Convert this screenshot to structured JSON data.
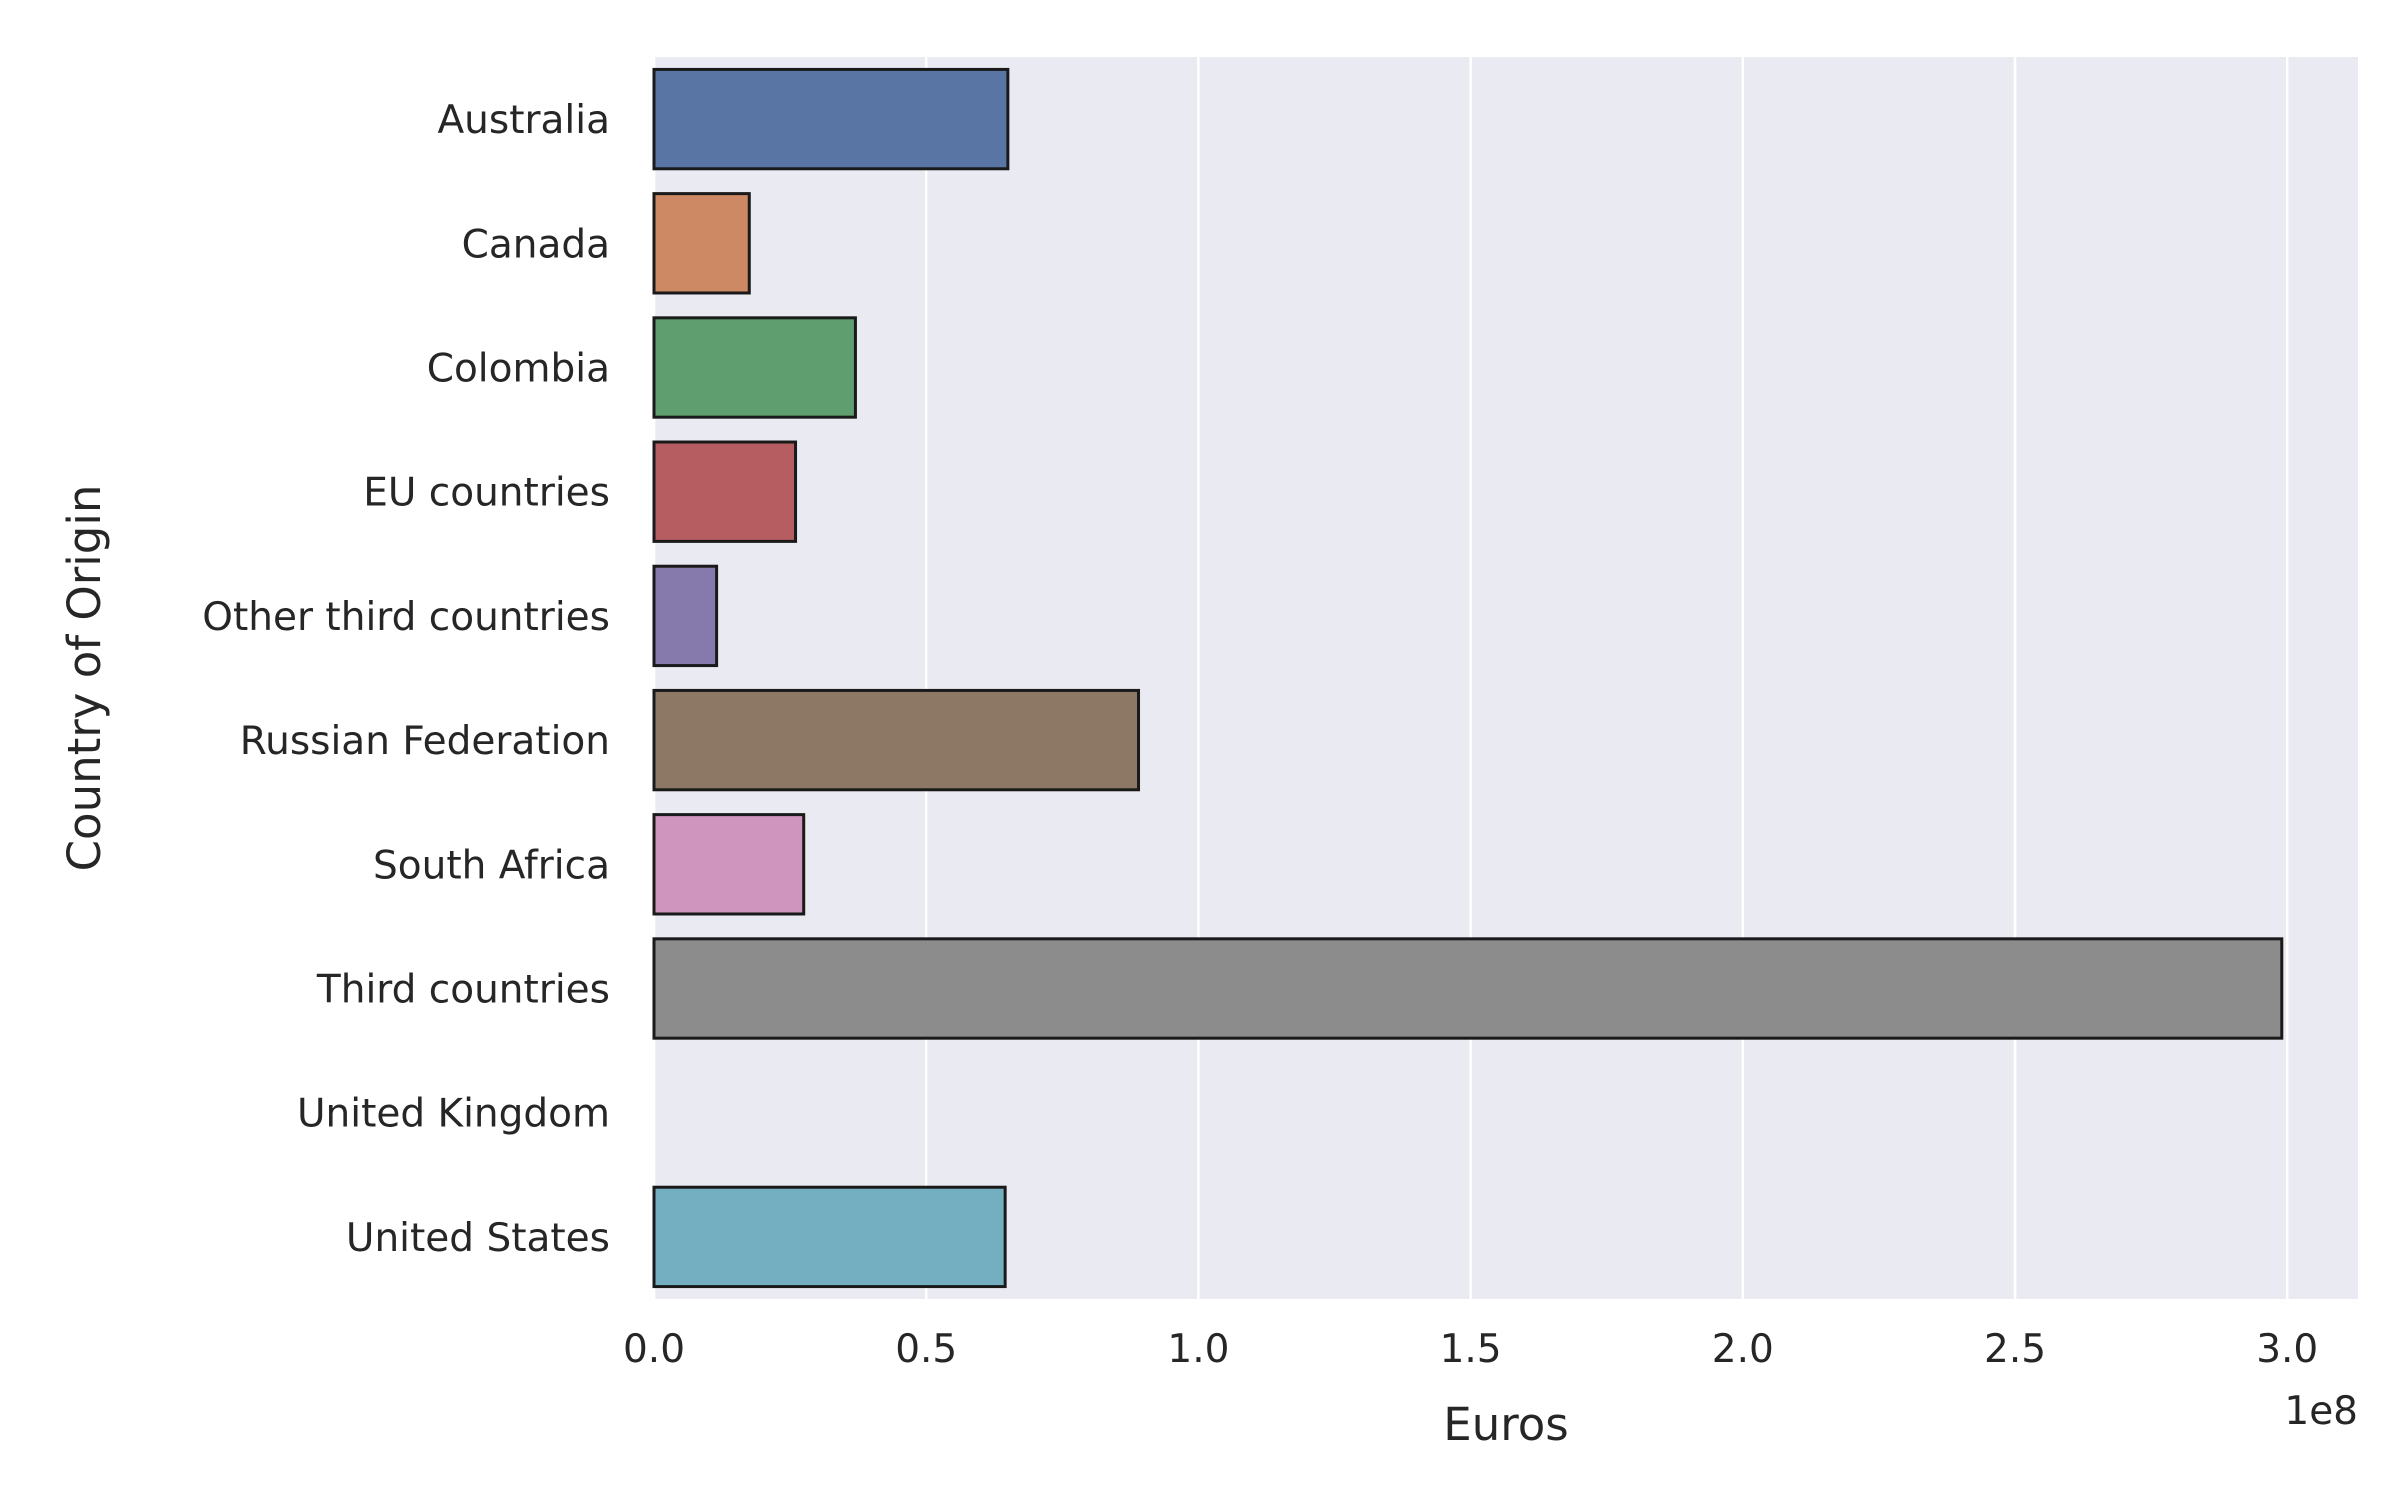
{
  "chart_data": {
    "type": "bar",
    "orientation": "horizontal",
    "categories": [
      "Australia",
      "Canada",
      "Colombia",
      "EU countries",
      "Other third countries",
      "Russian Federation",
      "South Africa",
      "Third countries",
      "United Kingdom",
      "United States"
    ],
    "values": [
      65000000,
      17500000,
      37000000,
      26000000,
      11500000,
      89000000,
      27500000,
      299000000,
      0,
      64500000
    ],
    "colors": [
      "#5875a4",
      "#cc8963",
      "#5f9e6e",
      "#b55d60",
      "#857aab",
      "#8d7866",
      "#d095bf",
      "#8c8c8c",
      "#c1b37f",
      "#73afc1"
    ],
    "title": "",
    "xlabel": "Euros",
    "ylabel": "Country of Origin",
    "xlim": [
      0,
      313000000
    ],
    "xticks": [
      0,
      50000000,
      100000000,
      150000000,
      200000000,
      250000000,
      300000000
    ],
    "xtick_labels": [
      "0.0",
      "0.5",
      "1.0",
      "1.5",
      "2.0",
      "2.5",
      "3.0"
    ],
    "x_offset_text": "1e8",
    "grid": true,
    "background_color": "#eaeaf2",
    "grid_color": "#ffffff",
    "edge_color": "#1a1a1a"
  }
}
